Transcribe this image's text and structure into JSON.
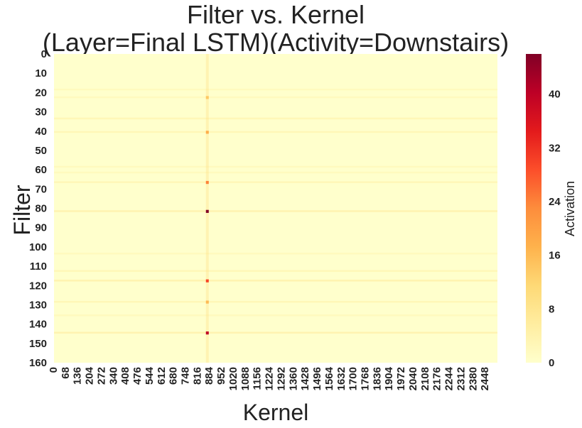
{
  "chart_data": {
    "type": "heatmap",
    "title_line1": "Filter vs. Kernel",
    "title_line2": "(Layer=Final LSTM)(Activity=Downstairs)",
    "xlabel": "Kernel",
    "ylabel": "Filter",
    "colorbar_label": "Activation",
    "colormap": "YlOrRd",
    "colors": [
      "#ffffcc",
      "#ffeda0",
      "#fed976",
      "#feb24c",
      "#fd8d3c",
      "#fc4e2a",
      "#e31a1c",
      "#bd0026",
      "#800026"
    ],
    "value_range": [
      0,
      46
    ],
    "x_range": [
      0,
      2516
    ],
    "y_range": [
      0,
      160
    ],
    "x_ticks": [
      "0",
      "68",
      "136",
      "204",
      "272",
      "340",
      "408",
      "476",
      "544",
      "612",
      "680",
      "748",
      "816",
      "884",
      "952",
      "1020",
      "1088",
      "1156",
      "1224",
      "1292",
      "1360",
      "1428",
      "1496",
      "1564",
      "1632",
      "1700",
      "1768",
      "1836",
      "1904",
      "1972",
      "2040",
      "2108",
      "2176",
      "2244",
      "2312",
      "2380",
      "2448"
    ],
    "y_ticks": [
      "0",
      "10",
      "20",
      "30",
      "40",
      "50",
      "60",
      "70",
      "80",
      "90",
      "100",
      "110",
      "120",
      "130",
      "140",
      "150",
      "160"
    ],
    "colorbar_ticks": [
      "0",
      "8",
      "16",
      "24",
      "32",
      "40"
    ],
    "hot_rows": [
      {
        "filter": 18,
        "activation": 2
      },
      {
        "filter": 22,
        "activation": 2
      },
      {
        "filter": 33,
        "activation": 3
      },
      {
        "filter": 40,
        "activation": 3
      },
      {
        "filter": 58,
        "activation": 2
      },
      {
        "filter": 61,
        "activation": 2
      },
      {
        "filter": 66,
        "activation": 3
      },
      {
        "filter": 81,
        "activation": 4
      },
      {
        "filter": 103,
        "activation": 2
      },
      {
        "filter": 112,
        "activation": 3
      },
      {
        "filter": 117,
        "activation": 4
      },
      {
        "filter": 128,
        "activation": 3
      },
      {
        "filter": 135,
        "activation": 2
      },
      {
        "filter": 144,
        "activation": 4
      }
    ],
    "hot_columns": [
      {
        "kernel": 870,
        "activation": 10
      }
    ],
    "peaks": [
      {
        "filter": 81,
        "kernel": 870,
        "activation": 46
      },
      {
        "filter": 144,
        "kernel": 870,
        "activation": 40
      },
      {
        "filter": 117,
        "kernel": 870,
        "activation": 30
      },
      {
        "filter": 66,
        "kernel": 870,
        "activation": 24
      },
      {
        "filter": 40,
        "kernel": 870,
        "activation": 18
      },
      {
        "filter": 128,
        "kernel": 870,
        "activation": 16
      },
      {
        "filter": 22,
        "kernel": 870,
        "activation": 14
      }
    ]
  }
}
